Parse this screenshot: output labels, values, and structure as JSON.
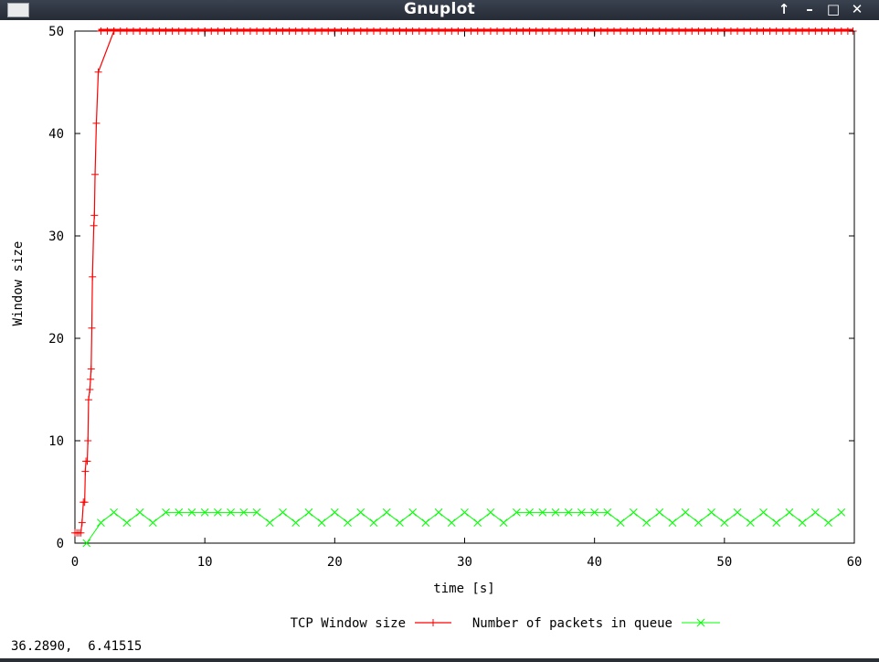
{
  "window": {
    "title": "Gnuplot",
    "buttons": {
      "stick": "↑",
      "minimize": "–",
      "maximize": "□",
      "close": "✕"
    }
  },
  "status_readout": "36.2890,  6.41515",
  "colors": {
    "tcp": "#ff0000",
    "queue": "#00ff00",
    "axis": "#000000"
  },
  "chart_data": {
    "type": "line",
    "xlabel": "time [s]",
    "ylabel": "Window size",
    "xlim": [
      0,
      60
    ],
    "ylim": [
      0,
      50
    ],
    "xticks": [
      0,
      10,
      20,
      30,
      40,
      50,
      60
    ],
    "yticks": [
      0,
      10,
      20,
      30,
      40,
      50
    ],
    "legend": "bottom-center",
    "grid": false,
    "series": [
      {
        "name": "TCP Window size",
        "color": "#ff0000",
        "marker": "plus",
        "x": [
          0,
          0.15,
          0.3,
          0.45,
          0.55,
          0.65,
          0.75,
          0.8,
          0.85,
          0.95,
          1.0,
          1.05,
          1.15,
          1.2,
          1.25,
          1.3,
          1.35,
          1.45,
          1.5,
          1.55,
          1.65,
          1.8,
          3,
          5,
          10,
          15,
          20,
          25,
          30,
          35,
          40,
          45,
          50,
          55,
          59.9
        ],
        "y": [
          1,
          1,
          1,
          1,
          2,
          4,
          4,
          7,
          8,
          8,
          10,
          14,
          15,
          16,
          17,
          21,
          26,
          31,
          32,
          36,
          41,
          46,
          50,
          50,
          50,
          50,
          50,
          50,
          50,
          50,
          50,
          50,
          50,
          50,
          50
        ]
      },
      {
        "name": "Number of packets in queue",
        "color": "#00ff00",
        "marker": "cross",
        "x": [
          0.9,
          2,
          3,
          4,
          5,
          6,
          7,
          8,
          9,
          10,
          11,
          12,
          13,
          14,
          15,
          16,
          17,
          18,
          19,
          20,
          21,
          22,
          23,
          24,
          25,
          26,
          27,
          28,
          29,
          30,
          31,
          32,
          33,
          34,
          35,
          36,
          37,
          38,
          39,
          40,
          41,
          42,
          43,
          44,
          45,
          46,
          47,
          48,
          49,
          50,
          51,
          52,
          53,
          54,
          55,
          56,
          57,
          58,
          59
        ],
        "y": [
          0,
          2,
          3,
          2,
          3,
          2,
          3,
          3,
          3,
          3,
          3,
          3,
          3,
          3,
          2,
          3,
          2,
          3,
          2,
          3,
          2,
          3,
          2,
          3,
          2,
          3,
          2,
          3,
          2,
          3,
          2,
          3,
          2,
          3,
          3,
          3,
          3,
          3,
          3,
          3,
          3,
          2,
          3,
          2,
          3,
          2,
          3,
          2,
          3,
          2,
          3,
          2,
          3,
          2,
          3,
          2,
          3,
          2,
          3
        ]
      }
    ]
  }
}
